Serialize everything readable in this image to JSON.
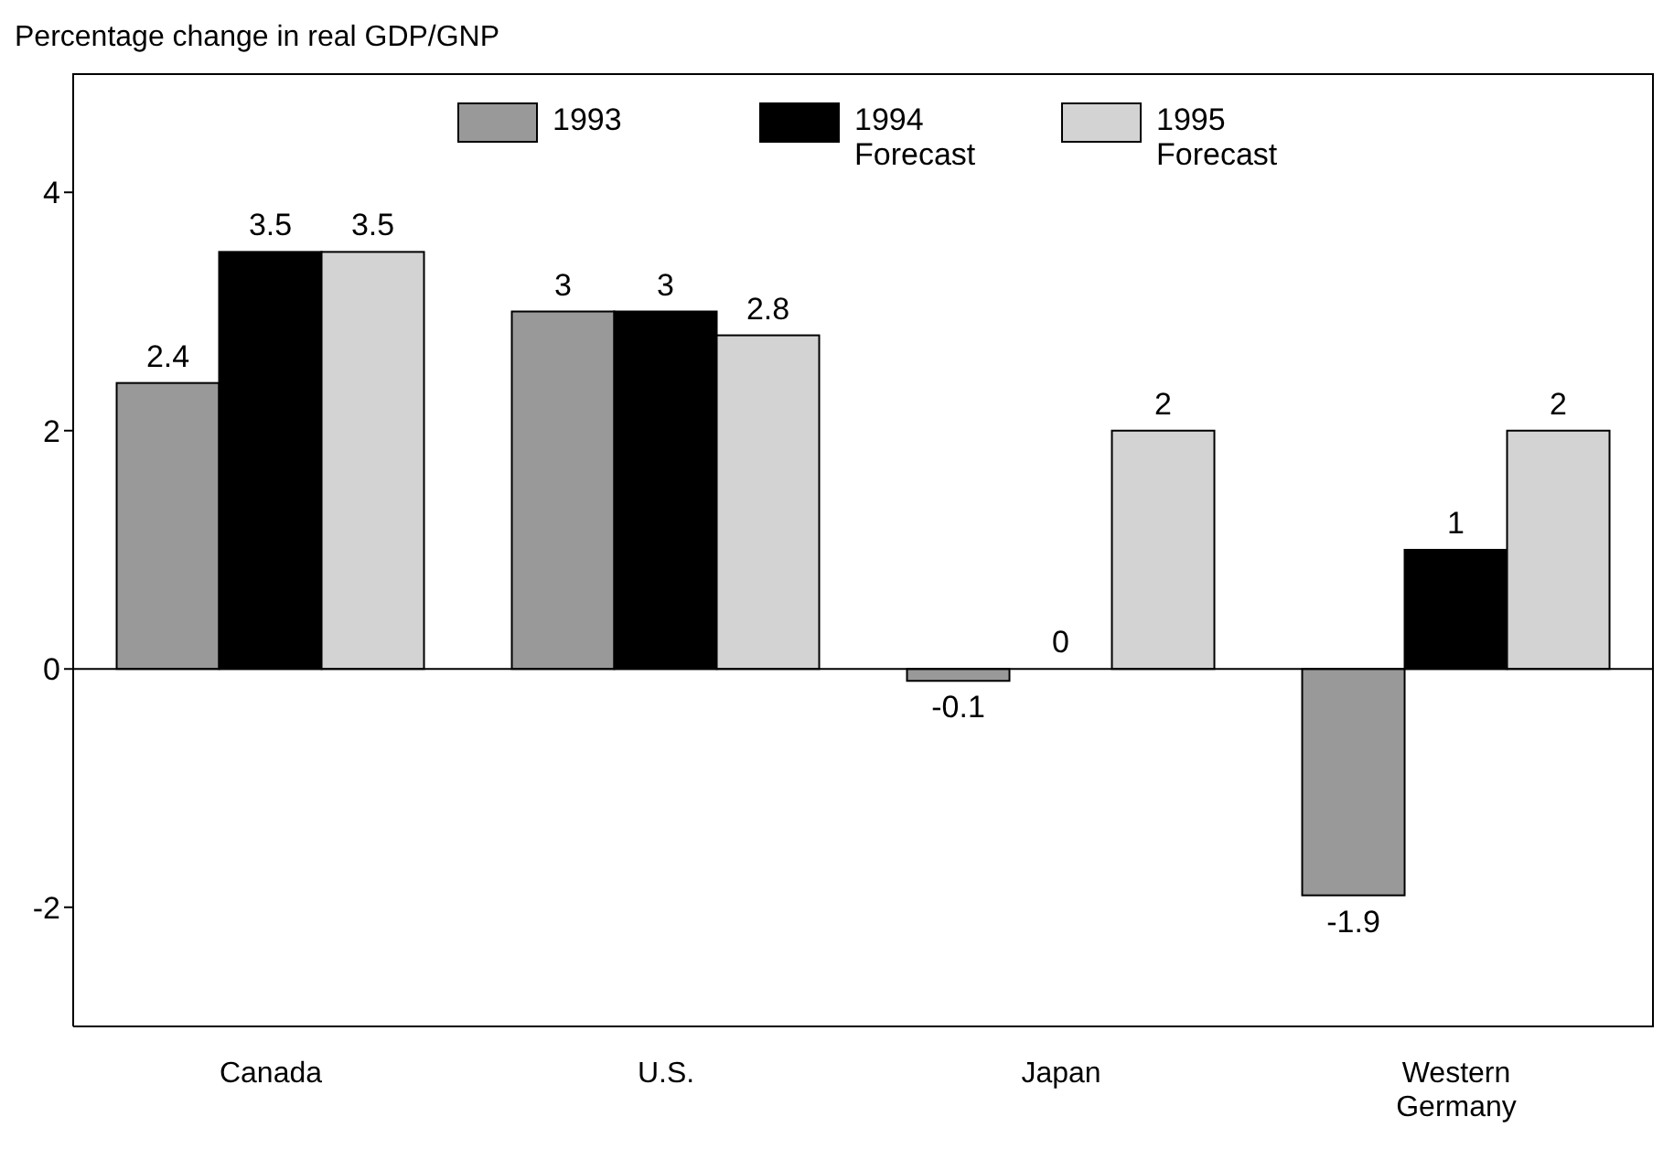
{
  "chart_data": {
    "type": "bar",
    "title": "Percentage change in real GDP/GNP",
    "categories": [
      "Canada",
      "U.S.",
      "Japan",
      "Western Germany"
    ],
    "series": [
      {
        "name": "1993",
        "color": "#999999",
        "values": [
          2.4,
          3,
          -0.1,
          -1.9
        ]
      },
      {
        "name": "1994 Forecast",
        "color": "#000000",
        "values": [
          3.5,
          3,
          0,
          1
        ]
      },
      {
        "name": "1995 Forecast",
        "color": "#d3d3d3",
        "values": [
          3.5,
          2.8,
          2,
          2
        ]
      }
    ],
    "ylim": [
      -3,
      5
    ],
    "yticks": [
      -2,
      0,
      2,
      4
    ],
    "ref_lines": [
      {
        "axis": "y",
        "value": 0,
        "color": "#000000"
      }
    ],
    "data_labels": true,
    "legend": "top",
    "grid": false
  }
}
